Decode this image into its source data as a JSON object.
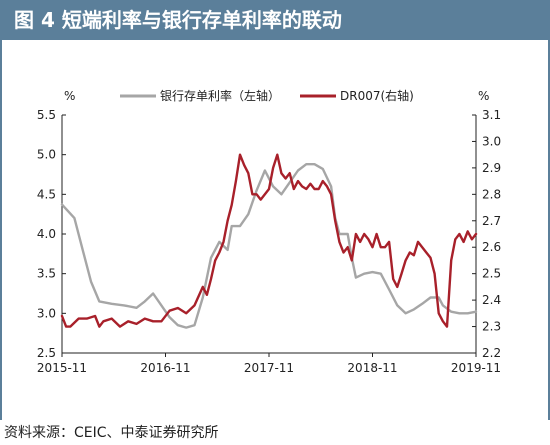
{
  "figure": {
    "title": "图 4 短端利率与银行存单利率的联动",
    "source": "资料来源：CEIC、中泰证券研究所"
  },
  "colors": {
    "title_bg": "#5b7f9a",
    "left_series": "#a6a6a6",
    "right_series": "#a8202a",
    "axis": "#222222"
  },
  "chart_data": {
    "type": "line",
    "x_axis": {
      "ticks": [
        "2015-11",
        "2016-11",
        "2017-11",
        "2018-11",
        "2019-11"
      ],
      "range": [
        "2015-11",
        "2019-11"
      ]
    },
    "left_axis": {
      "unit": "%",
      "ylim": [
        2.5,
        5.5
      ],
      "ticks": [
        "2.5",
        "3.0",
        "3.5",
        "4.0",
        "4.5",
        "5.0",
        "5.5"
      ]
    },
    "right_axis": {
      "unit": "%",
      "ylim": [
        2.2,
        3.1
      ],
      "ticks": [
        "2.2",
        "2.3",
        "2.4",
        "2.5",
        "2.6",
        "2.7",
        "2.8",
        "2.9",
        "3.0",
        "3.1"
      ]
    },
    "legend": {
      "placement": "top-center"
    },
    "grid": false,
    "series": [
      {
        "name": "银行存单利率（左轴）",
        "axis": "left",
        "color": "#a6a6a6",
        "points": [
          [
            0.0,
            4.37
          ],
          [
            0.03,
            4.2
          ],
          [
            0.05,
            3.8
          ],
          [
            0.07,
            3.4
          ],
          [
            0.09,
            3.15
          ],
          [
            0.12,
            3.12
          ],
          [
            0.15,
            3.1
          ],
          [
            0.18,
            3.07
          ],
          [
            0.2,
            3.15
          ],
          [
            0.22,
            3.25
          ],
          [
            0.24,
            3.1
          ],
          [
            0.26,
            2.95
          ],
          [
            0.28,
            2.85
          ],
          [
            0.3,
            2.82
          ],
          [
            0.32,
            2.85
          ],
          [
            0.34,
            3.2
          ],
          [
            0.36,
            3.7
          ],
          [
            0.38,
            3.9
          ],
          [
            0.4,
            3.8
          ],
          [
            0.41,
            4.1
          ],
          [
            0.43,
            4.1
          ],
          [
            0.45,
            4.25
          ],
          [
            0.47,
            4.55
          ],
          [
            0.49,
            4.8
          ],
          [
            0.51,
            4.6
          ],
          [
            0.53,
            4.5
          ],
          [
            0.55,
            4.65
          ],
          [
            0.57,
            4.8
          ],
          [
            0.59,
            4.88
          ],
          [
            0.61,
            4.88
          ],
          [
            0.63,
            4.82
          ],
          [
            0.65,
            4.6
          ],
          [
            0.66,
            4.2
          ],
          [
            0.67,
            4.0
          ],
          [
            0.69,
            4.0
          ],
          [
            0.7,
            3.7
          ],
          [
            0.71,
            3.45
          ],
          [
            0.73,
            3.5
          ],
          [
            0.75,
            3.52
          ],
          [
            0.77,
            3.5
          ],
          [
            0.79,
            3.3
          ],
          [
            0.81,
            3.1
          ],
          [
            0.83,
            3.0
          ],
          [
            0.85,
            3.05
          ],
          [
            0.87,
            3.12
          ],
          [
            0.89,
            3.2
          ],
          [
            0.91,
            3.2
          ],
          [
            0.92,
            3.1
          ],
          [
            0.94,
            3.02
          ],
          [
            0.96,
            3.0
          ],
          [
            0.98,
            3.0
          ],
          [
            1.0,
            3.02
          ]
        ]
      },
      {
        "name": "DR007(右轴)",
        "axis": "right",
        "color": "#a8202a",
        "points": [
          [
            0.0,
            2.34
          ],
          [
            0.01,
            2.3
          ],
          [
            0.02,
            2.3
          ],
          [
            0.04,
            2.33
          ],
          [
            0.06,
            2.33
          ],
          [
            0.08,
            2.34
          ],
          [
            0.09,
            2.3
          ],
          [
            0.1,
            2.32
          ],
          [
            0.12,
            2.33
          ],
          [
            0.14,
            2.3
          ],
          [
            0.16,
            2.32
          ],
          [
            0.18,
            2.31
          ],
          [
            0.2,
            2.33
          ],
          [
            0.22,
            2.32
          ],
          [
            0.24,
            2.32
          ],
          [
            0.26,
            2.36
          ],
          [
            0.28,
            2.37
          ],
          [
            0.3,
            2.35
          ],
          [
            0.32,
            2.38
          ],
          [
            0.34,
            2.45
          ],
          [
            0.35,
            2.42
          ],
          [
            0.36,
            2.48
          ],
          [
            0.37,
            2.55
          ],
          [
            0.38,
            2.58
          ],
          [
            0.39,
            2.62
          ],
          [
            0.4,
            2.7
          ],
          [
            0.41,
            2.76
          ],
          [
            0.42,
            2.85
          ],
          [
            0.43,
            2.95
          ],
          [
            0.44,
            2.91
          ],
          [
            0.45,
            2.88
          ],
          [
            0.46,
            2.8
          ],
          [
            0.47,
            2.8
          ],
          [
            0.48,
            2.78
          ],
          [
            0.49,
            2.8
          ],
          [
            0.5,
            2.82
          ],
          [
            0.51,
            2.9
          ],
          [
            0.52,
            2.95
          ],
          [
            0.53,
            2.88
          ],
          [
            0.54,
            2.86
          ],
          [
            0.55,
            2.88
          ],
          [
            0.56,
            2.82
          ],
          [
            0.57,
            2.85
          ],
          [
            0.58,
            2.83
          ],
          [
            0.59,
            2.82
          ],
          [
            0.6,
            2.84
          ],
          [
            0.61,
            2.82
          ],
          [
            0.62,
            2.82
          ],
          [
            0.63,
            2.85
          ],
          [
            0.64,
            2.83
          ],
          [
            0.65,
            2.8
          ],
          [
            0.66,
            2.7
          ],
          [
            0.67,
            2.62
          ],
          [
            0.68,
            2.58
          ],
          [
            0.69,
            2.6
          ],
          [
            0.7,
            2.55
          ],
          [
            0.71,
            2.65
          ],
          [
            0.72,
            2.62
          ],
          [
            0.73,
            2.65
          ],
          [
            0.74,
            2.63
          ],
          [
            0.75,
            2.6
          ],
          [
            0.76,
            2.65
          ],
          [
            0.77,
            2.6
          ],
          [
            0.78,
            2.6
          ],
          [
            0.79,
            2.62
          ],
          [
            0.8,
            2.48
          ],
          [
            0.81,
            2.45
          ],
          [
            0.82,
            2.5
          ],
          [
            0.83,
            2.55
          ],
          [
            0.84,
            2.58
          ],
          [
            0.85,
            2.57
          ],
          [
            0.86,
            2.62
          ],
          [
            0.87,
            2.6
          ],
          [
            0.88,
            2.58
          ],
          [
            0.89,
            2.56
          ],
          [
            0.9,
            2.5
          ],
          [
            0.91,
            2.35
          ],
          [
            0.92,
            2.32
          ],
          [
            0.93,
            2.3
          ],
          [
            0.94,
            2.55
          ],
          [
            0.95,
            2.63
          ],
          [
            0.96,
            2.65
          ],
          [
            0.97,
            2.62
          ],
          [
            0.98,
            2.66
          ],
          [
            0.99,
            2.63
          ],
          [
            1.0,
            2.65
          ]
        ]
      }
    ]
  }
}
